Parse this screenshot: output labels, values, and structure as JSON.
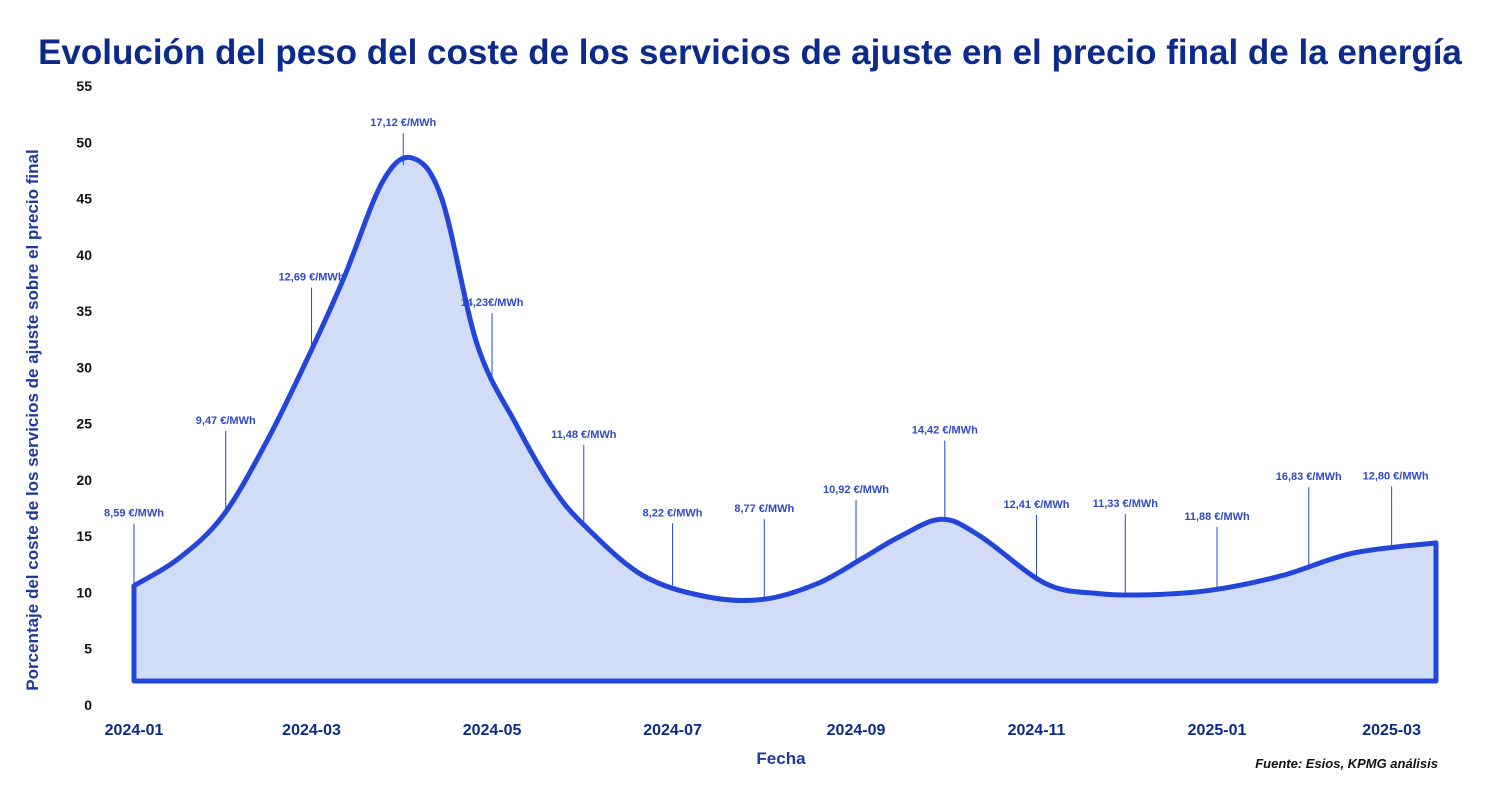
{
  "chart_data": {
    "type": "area",
    "title": "Evolución del peso del coste de los servicios de ajuste en el precio final de la energía",
    "xlabel": "Fecha",
    "ylabel": "Porcentaje del coste de los servicios de ajuste sobre el precio final",
    "source": "Fuente: Esios, KPMG análisis",
    "ylim": [
      0,
      55
    ],
    "yticks": [
      0,
      5,
      10,
      15,
      20,
      25,
      30,
      35,
      40,
      45,
      50,
      55
    ],
    "xlim": [
      "2024-01-01",
      "2025-03-16"
    ],
    "xticks": [
      "2024-01",
      "2024-03",
      "2024-05",
      "2024-07",
      "2024-09",
      "2024-11",
      "2025-01",
      "2025-03"
    ],
    "grid": false,
    "line_color": "#2446d8",
    "fill_color": "#d3dcf7",
    "series": [
      {
        "points": [
          {
            "x": "2024-01-01",
            "y": 10.6
          },
          {
            "x": "2024-01-16",
            "y": 13.0
          },
          {
            "x": "2024-01-31",
            "y": 16.8
          },
          {
            "x": "2024-02-15",
            "y": 23.5
          },
          {
            "x": "2024-02-29",
            "y": 31.0
          },
          {
            "x": "2024-03-12",
            "y": 38.0
          },
          {
            "x": "2024-03-25",
            "y": 46.5
          },
          {
            "x": "2024-04-04",
            "y": 48.6
          },
          {
            "x": "2024-04-14",
            "y": 45.0
          },
          {
            "x": "2024-04-26",
            "y": 32.0
          },
          {
            "x": "2024-05-09",
            "y": 25.0
          },
          {
            "x": "2024-05-21",
            "y": 19.5
          },
          {
            "x": "2024-06-01",
            "y": 16.0
          },
          {
            "x": "2024-06-21",
            "y": 11.5
          },
          {
            "x": "2024-07-13",
            "y": 9.6
          },
          {
            "x": "2024-08-01",
            "y": 9.4
          },
          {
            "x": "2024-08-19",
            "y": 10.8
          },
          {
            "x": "2024-09-03",
            "y": 13.0
          },
          {
            "x": "2024-09-16",
            "y": 15.0
          },
          {
            "x": "2024-09-30",
            "y": 16.5
          },
          {
            "x": "2024-10-13",
            "y": 15.0
          },
          {
            "x": "2024-11-04",
            "y": 10.8
          },
          {
            "x": "2024-11-22",
            "y": 9.9
          },
          {
            "x": "2024-12-10",
            "y": 9.8
          },
          {
            "x": "2024-12-30",
            "y": 10.2
          },
          {
            "x": "2025-01-23",
            "y": 11.5
          },
          {
            "x": "2025-02-16",
            "y": 13.5
          },
          {
            "x": "2025-03-16",
            "y": 14.4
          }
        ]
      }
    ],
    "annotations": [
      {
        "x": "2024-01-01",
        "label": "8,59 €/MWh"
      },
      {
        "x": "2024-02-01",
        "label": "9,47 €/MWh"
      },
      {
        "x": "2024-03-01",
        "label": "12,69 €/MWh"
      },
      {
        "x": "2024-04-01",
        "label": "17,12 €/MWh"
      },
      {
        "x": "2024-05-01",
        "label": "14,23€/MWh"
      },
      {
        "x": "2024-06-01",
        "label": "11,48 €/MWh"
      },
      {
        "x": "2024-07-01",
        "label": "8,22 €/MWh"
      },
      {
        "x": "2024-08-01",
        "label": "8,77 €/MWh"
      },
      {
        "x": "2024-09-01",
        "label": "10,92 €/MWh"
      },
      {
        "x": "2024-10-01",
        "label": "14,42 €/MWh"
      },
      {
        "x": "2024-11-01",
        "label": "12,41 €/MWh"
      },
      {
        "x": "2024-12-01",
        "label": "11,33 €/MWh"
      },
      {
        "x": "2025-01-01",
        "label": "11,88 €/MWh"
      },
      {
        "x": "2025-02-01",
        "label": "16,83 €/MWh"
      },
      {
        "x": "2025-03-01",
        "label": "12,80 €/MWh"
      }
    ]
  }
}
